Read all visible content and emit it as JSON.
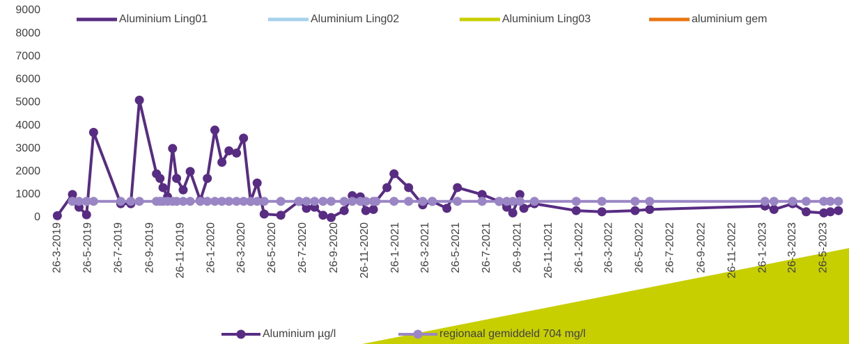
{
  "chart_data": {
    "type": "line",
    "top_legend": [
      {
        "name": "Aluminium Ling01",
        "color": "#5a2d82"
      },
      {
        "name": "Aluminium Ling02",
        "color": "#a6d2ec"
      },
      {
        "name": "Aluminium Ling03",
        "color": "#c8cf00"
      },
      {
        "name": "aluminium gem",
        "color": "#e87511"
      }
    ],
    "xlim": [
      "2019-03-20",
      "2023-07-05"
    ],
    "xticks": [
      {
        "value": "2019-03-26",
        "label": "26-3-2019"
      },
      {
        "value": "2019-05-26",
        "label": "26-5-2019"
      },
      {
        "value": "2019-07-26",
        "label": "26-7-2019"
      },
      {
        "value": "2019-09-26",
        "label": "26-9-2019"
      },
      {
        "value": "2019-11-26",
        "label": "26-11-2019"
      },
      {
        "value": "2020-01-26",
        "label": "26-1-2020"
      },
      {
        "value": "2020-03-26",
        "label": "26-3-2020"
      },
      {
        "value": "2020-05-26",
        "label": "26-5-2020"
      },
      {
        "value": "2020-07-26",
        "label": "26-7-2020"
      },
      {
        "value": "2020-09-26",
        "label": "26-9-2020"
      },
      {
        "value": "2020-11-26",
        "label": "26-11-2020"
      },
      {
        "value": "2021-01-26",
        "label": "26-1-2021"
      },
      {
        "value": "2021-03-26",
        "label": "26-3-2021"
      },
      {
        "value": "2021-05-26",
        "label": "26-5-2021"
      },
      {
        "value": "2021-07-26",
        "label": "26-7-2021"
      },
      {
        "value": "2021-09-26",
        "label": "26-9-2021"
      },
      {
        "value": "2021-11-26",
        "label": "26-11-2021"
      },
      {
        "value": "2022-01-26",
        "label": "26-1-2022"
      },
      {
        "value": "2022-03-26",
        "label": "26-3-2022"
      },
      {
        "value": "2022-05-26",
        "label": "26-5-2022"
      },
      {
        "value": "2022-07-26",
        "label": "26-7-2022"
      },
      {
        "value": "2022-09-26",
        "label": "26-9-2022"
      },
      {
        "value": "2022-11-26",
        "label": "26-11-2022"
      },
      {
        "value": "2023-01-26",
        "label": "26-1-2023"
      },
      {
        "value": "2023-03-26",
        "label": "26-3-2023"
      },
      {
        "value": "2023-05-26",
        "label": "26-5-2023"
      }
    ],
    "ylim": [
      0,
      9000
    ],
    "yticks": [
      0,
      1000,
      2000,
      3000,
      4000,
      5000,
      6000,
      7000,
      8000,
      9000
    ],
    "series": [
      {
        "name": "Aluminium µg/l",
        "color": "#582c83",
        "x": [
          "2019-03-26",
          "2019-04-25",
          "2019-05-08",
          "2019-05-23",
          "2019-06-06",
          "2019-07-30",
          "2019-08-19",
          "2019-09-05",
          "2019-10-09",
          "2019-10-16",
          "2019-10-22",
          "2019-10-31",
          "2019-11-10",
          "2019-11-18",
          "2019-12-01",
          "2019-12-15",
          "2020-01-04",
          "2020-01-18",
          "2020-02-02",
          "2020-02-16",
          "2020-03-01",
          "2020-03-16",
          "2020-03-30",
          "2020-04-13",
          "2020-04-26",
          "2020-05-10",
          "2020-06-12",
          "2020-07-18",
          "2020-08-02",
          "2020-08-18",
          "2020-09-04",
          "2020-09-20",
          "2020-10-16",
          "2020-11-01",
          "2020-11-17",
          "2020-11-28",
          "2020-12-13",
          "2020-12-18",
          "2021-01-09",
          "2021-01-23",
          "2021-02-21",
          "2021-03-21",
          "2021-04-09",
          "2021-05-08",
          "2021-05-29",
          "2021-07-17",
          "2021-08-20",
          "2021-09-04",
          "2021-09-16",
          "2021-09-30",
          "2021-10-08",
          "2021-10-29",
          "2022-01-20",
          "2022-03-12",
          "2022-05-17",
          "2022-06-15",
          "2023-01-30",
          "2023-02-17",
          "2023-03-26",
          "2023-04-22",
          "2023-05-27",
          "2023-06-09",
          "2023-06-25"
        ],
        "values": [
          80,
          1000,
          450,
          120,
          3700,
          600,
          600,
          5100,
          1900,
          1700,
          1300,
          900,
          3000,
          1700,
          1200,
          2000,
          750,
          1700,
          3800,
          2400,
          2900,
          2800,
          3450,
          700,
          1500,
          150,
          100,
          700,
          400,
          450,
          100,
          0,
          300,
          950,
          900,
          300,
          350,
          700,
          1300,
          1900,
          1300,
          550,
          700,
          400,
          1300,
          1000,
          700,
          450,
          200,
          1000,
          400,
          600,
          300,
          250,
          300,
          350,
          500,
          350,
          600,
          250,
          200,
          250,
          300
        ]
      },
      {
        "name": "regionaal gemiddeld 704 mg/l",
        "color": "#9a86c4",
        "x": [
          "2019-04-25",
          "2019-05-08",
          "2019-05-23",
          "2019-06-06",
          "2019-07-30",
          "2019-08-19",
          "2019-09-05",
          "2019-10-09",
          "2019-10-16",
          "2019-10-22",
          "2019-10-31",
          "2019-11-10",
          "2019-11-18",
          "2019-12-01",
          "2019-12-15",
          "2020-01-04",
          "2020-01-18",
          "2020-02-02",
          "2020-02-16",
          "2020-03-01",
          "2020-03-16",
          "2020-03-30",
          "2020-04-13",
          "2020-04-26",
          "2020-05-10",
          "2020-06-12",
          "2020-07-18",
          "2020-08-02",
          "2020-08-18",
          "2020-09-04",
          "2020-09-20",
          "2020-10-16",
          "2020-11-01",
          "2020-11-17",
          "2020-11-28",
          "2020-12-13",
          "2020-12-18",
          "2021-01-23",
          "2021-02-21",
          "2021-03-21",
          "2021-04-09",
          "2021-05-29",
          "2021-07-17",
          "2021-08-20",
          "2021-09-04",
          "2021-09-16",
          "2021-09-30",
          "2021-10-29",
          "2022-01-20",
          "2022-03-12",
          "2022-05-17",
          "2022-06-15",
          "2023-01-30",
          "2023-02-17",
          "2023-03-26",
          "2023-04-22",
          "2023-05-27",
          "2023-06-09",
          "2023-06-25"
        ],
        "values": [
          704,
          704,
          704,
          704,
          704,
          704,
          704,
          704,
          704,
          704,
          704,
          704,
          704,
          704,
          704,
          704,
          704,
          704,
          704,
          704,
          704,
          704,
          704,
          704,
          704,
          704,
          704,
          704,
          704,
          704,
          704,
          704,
          704,
          704,
          704,
          704,
          704,
          704,
          704,
          704,
          704,
          704,
          704,
          704,
          704,
          704,
          704,
          704,
          704,
          704,
          704,
          704,
          704,
          704,
          704,
          704,
          704,
          704,
          704
        ]
      }
    ]
  }
}
